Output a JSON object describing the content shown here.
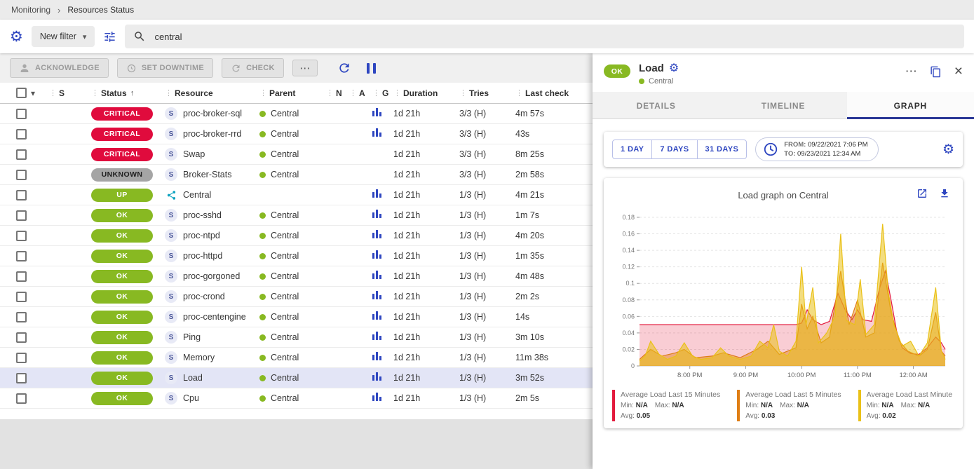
{
  "breadcrumb": {
    "items": [
      "Monitoring",
      "Resources Status"
    ]
  },
  "icons": {
    "gear": "⚙",
    "caret_down": "▾",
    "kebab": "⋮",
    "sort_asc": "↑",
    "more": "⋯",
    "close": "×",
    "chevron_right": "›"
  },
  "filter_bar": {
    "new_filter_label": "New filter",
    "search_value": "central"
  },
  "toolbar": {
    "acknowledge_label": "ACKNOWLEDGE",
    "set_downtime_label": "SET DOWNTIME",
    "check_label": "CHECK"
  },
  "table": {
    "columns": [
      {
        "key": "severity",
        "label": "S"
      },
      {
        "key": "status",
        "label": "Status",
        "sorted": true
      },
      {
        "key": "resource",
        "label": "Resource"
      },
      {
        "key": "parent",
        "label": "Parent"
      },
      {
        "key": "notes",
        "label": "N"
      },
      {
        "key": "action",
        "label": "A"
      },
      {
        "key": "graph",
        "label": "G"
      },
      {
        "key": "duration",
        "label": "Duration"
      },
      {
        "key": "tries",
        "label": "Tries"
      },
      {
        "key": "lastcheck",
        "label": "Last check"
      }
    ],
    "rows": [
      {
        "status": "CRITICAL",
        "severity": "critical",
        "type": "S",
        "resource": "proc-broker-sql",
        "parent": "Central",
        "graph": true,
        "duration": "1d 21h",
        "tries": "3/3 (H)",
        "last_check": "4m 57s"
      },
      {
        "status": "CRITICAL",
        "severity": "critical",
        "type": "S",
        "resource": "proc-broker-rrd",
        "parent": "Central",
        "graph": true,
        "duration": "1d 21h",
        "tries": "3/3 (H)",
        "last_check": "43s"
      },
      {
        "status": "CRITICAL",
        "severity": "critical",
        "type": "S",
        "resource": "Swap",
        "parent": "Central",
        "graph": false,
        "duration": "1d 21h",
        "tries": "3/3 (H)",
        "last_check": "8m 25s"
      },
      {
        "status": "UNKNOWN",
        "severity": "unknown",
        "type": "S",
        "resource": "Broker-Stats",
        "parent": "Central",
        "graph": false,
        "duration": "1d 21h",
        "tries": "3/3 (H)",
        "last_check": "2m 58s"
      },
      {
        "status": "UP",
        "severity": "up",
        "type": "H",
        "resource": "Central",
        "parent": "",
        "graph": true,
        "duration": "1d 21h",
        "tries": "1/3 (H)",
        "last_check": "4m 21s"
      },
      {
        "status": "OK",
        "severity": "ok",
        "type": "S",
        "resource": "proc-sshd",
        "parent": "Central",
        "graph": true,
        "duration": "1d 21h",
        "tries": "1/3 (H)",
        "last_check": "1m 7s"
      },
      {
        "status": "OK",
        "severity": "ok",
        "type": "S",
        "resource": "proc-ntpd",
        "parent": "Central",
        "graph": true,
        "duration": "1d 21h",
        "tries": "1/3 (H)",
        "last_check": "4m 20s"
      },
      {
        "status": "OK",
        "severity": "ok",
        "type": "S",
        "resource": "proc-httpd",
        "parent": "Central",
        "graph": true,
        "duration": "1d 21h",
        "tries": "1/3 (H)",
        "last_check": "1m 35s"
      },
      {
        "status": "OK",
        "severity": "ok",
        "type": "S",
        "resource": "proc-gorgoned",
        "parent": "Central",
        "graph": true,
        "duration": "1d 21h",
        "tries": "1/3 (H)",
        "last_check": "4m 48s"
      },
      {
        "status": "OK",
        "severity": "ok",
        "type": "S",
        "resource": "proc-crond",
        "parent": "Central",
        "graph": true,
        "duration": "1d 21h",
        "tries": "1/3 (H)",
        "last_check": "2m 2s"
      },
      {
        "status": "OK",
        "severity": "ok",
        "type": "S",
        "resource": "proc-centengine",
        "parent": "Central",
        "graph": true,
        "duration": "1d 21h",
        "tries": "1/3 (H)",
        "last_check": "14s"
      },
      {
        "status": "OK",
        "severity": "ok",
        "type": "S",
        "resource": "Ping",
        "parent": "Central",
        "graph": true,
        "duration": "1d 21h",
        "tries": "1/3 (H)",
        "last_check": "3m 10s"
      },
      {
        "status": "OK",
        "severity": "ok",
        "type": "S",
        "resource": "Memory",
        "parent": "Central",
        "graph": true,
        "duration": "1d 21h",
        "tries": "1/3 (H)",
        "last_check": "11m 38s"
      },
      {
        "status": "OK",
        "severity": "ok",
        "type": "S",
        "resource": "Load",
        "parent": "Central",
        "graph": true,
        "duration": "1d 21h",
        "tries": "1/3 (H)",
        "last_check": "3m 52s",
        "selected": true
      },
      {
        "status": "OK",
        "severity": "ok",
        "type": "S",
        "resource": "Cpu",
        "parent": "Central",
        "graph": true,
        "duration": "1d 21h",
        "tries": "1/3 (H)",
        "last_check": "2m 5s"
      }
    ]
  },
  "panel": {
    "status": "OK",
    "title": "Load",
    "subtitle": "Central",
    "tabs": [
      "DETAILS",
      "TIMELINE",
      "GRAPH"
    ],
    "active_tab": "GRAPH",
    "range_buttons": [
      "1 DAY",
      "7 DAYS",
      "31 DAYS"
    ],
    "from_label": "FROM:",
    "from_value": "09/22/2021 7:06 PM",
    "to_label": "TO:",
    "to_value": "09/23/2021 12:34 AM",
    "graph_title": "Load graph on Central"
  },
  "chart_data": {
    "type": "area",
    "title": "Load graph on Central",
    "xlabel": "",
    "ylabel": "",
    "xlim": [
      19.1,
      24.57
    ],
    "ylim": [
      0,
      0.18
    ],
    "yticks": [
      0,
      0.02,
      0.04,
      0.06,
      0.08,
      0.1,
      0.12,
      0.14,
      0.16,
      0.18
    ],
    "xticks": [
      {
        "t": 20,
        "label": "8:00 PM"
      },
      {
        "t": 21,
        "label": "9:00 PM"
      },
      {
        "t": 22,
        "label": "10:00 PM"
      },
      {
        "t": 23,
        "label": "11:00 PM"
      },
      {
        "t": 24,
        "label": "12:00 AM"
      }
    ],
    "grid": true,
    "legend_position": "bottom",
    "legend": {
      "min_label": "Min:",
      "max_label": "Max:",
      "avg_label": "Avg:"
    },
    "series": [
      {
        "name": "Average Load Last 15 Minutes",
        "color": "#E31B3D",
        "fill": "rgba(227,27,61,0.22)",
        "min": "N/A",
        "max": "N/A",
        "avg": "0.05",
        "points": [
          [
            19.1,
            0.05
          ],
          [
            19.5,
            0.05
          ],
          [
            20,
            0.05
          ],
          [
            20.5,
            0.05
          ],
          [
            21,
            0.05
          ],
          [
            21.5,
            0.05
          ],
          [
            21.9,
            0.05
          ],
          [
            22,
            0.052
          ],
          [
            22.1,
            0.068
          ],
          [
            22.2,
            0.056
          ],
          [
            22.35,
            0.05
          ],
          [
            22.5,
            0.054
          ],
          [
            22.65,
            0.088
          ],
          [
            22.78,
            0.068
          ],
          [
            22.9,
            0.056
          ],
          [
            23,
            0.068
          ],
          [
            23.1,
            0.056
          ],
          [
            23.25,
            0.054
          ],
          [
            23.4,
            0.095
          ],
          [
            23.5,
            0.115
          ],
          [
            23.6,
            0.08
          ],
          [
            23.7,
            0.042
          ],
          [
            23.8,
            0.022
          ],
          [
            23.95,
            0.015
          ],
          [
            24.1,
            0.014
          ],
          [
            24.25,
            0.022
          ],
          [
            24.4,
            0.035
          ],
          [
            24.5,
            0.028
          ],
          [
            24.57,
            0.02
          ]
        ]
      },
      {
        "name": "Average Load Last 5 Minutes",
        "color": "#DF7E14",
        "fill": "rgba(223,126,20,0.45)",
        "min": "N/A",
        "max": "N/A",
        "avg": "0.03",
        "points": [
          [
            19.1,
            0.008
          ],
          [
            19.3,
            0.02
          ],
          [
            19.5,
            0.012
          ],
          [
            19.75,
            0.016
          ],
          [
            19.9,
            0.02
          ],
          [
            20.1,
            0.01
          ],
          [
            20.4,
            0.012
          ],
          [
            20.6,
            0.016
          ],
          [
            20.9,
            0.01
          ],
          [
            21.2,
            0.02
          ],
          [
            21.4,
            0.03
          ],
          [
            21.6,
            0.014
          ],
          [
            21.9,
            0.022
          ],
          [
            22,
            0.075
          ],
          [
            22.1,
            0.045
          ],
          [
            22.2,
            0.06
          ],
          [
            22.35,
            0.028
          ],
          [
            22.5,
            0.035
          ],
          [
            22.7,
            0.115
          ],
          [
            22.85,
            0.05
          ],
          [
            23,
            0.08
          ],
          [
            23.15,
            0.035
          ],
          [
            23.3,
            0.04
          ],
          [
            23.45,
            0.125
          ],
          [
            23.6,
            0.065
          ],
          [
            23.75,
            0.03
          ],
          [
            23.9,
            0.018
          ],
          [
            24.1,
            0.012
          ],
          [
            24.25,
            0.02
          ],
          [
            24.4,
            0.065
          ],
          [
            24.5,
            0.018
          ],
          [
            24.57,
            0.012
          ]
        ]
      },
      {
        "name": "Average Load Last Minute",
        "color": "#EAC118",
        "fill": "rgba(234,193,24,0.55)",
        "min": "N/A",
        "max": "N/A",
        "avg": "0.02",
        "points": [
          [
            19.1,
            0.006
          ],
          [
            19.2,
            0.012
          ],
          [
            19.3,
            0.03
          ],
          [
            19.45,
            0.014
          ],
          [
            19.6,
            0.008
          ],
          [
            19.75,
            0.012
          ],
          [
            19.9,
            0.028
          ],
          [
            20.05,
            0.012
          ],
          [
            20.2,
            0.008
          ],
          [
            20.4,
            0.01
          ],
          [
            20.55,
            0.022
          ],
          [
            20.7,
            0.012
          ],
          [
            20.9,
            0.008
          ],
          [
            21.1,
            0.012
          ],
          [
            21.25,
            0.03
          ],
          [
            21.4,
            0.022
          ],
          [
            21.5,
            0.05
          ],
          [
            21.6,
            0.018
          ],
          [
            21.75,
            0.012
          ],
          [
            21.9,
            0.03
          ],
          [
            22,
            0.12
          ],
          [
            22.08,
            0.05
          ],
          [
            22.2,
            0.095
          ],
          [
            22.3,
            0.028
          ],
          [
            22.45,
            0.04
          ],
          [
            22.6,
            0.06
          ],
          [
            22.7,
            0.16
          ],
          [
            22.8,
            0.055
          ],
          [
            22.95,
            0.05
          ],
          [
            23.05,
            0.105
          ],
          [
            23.15,
            0.038
          ],
          [
            23.3,
            0.05
          ],
          [
            23.45,
            0.172
          ],
          [
            23.55,
            0.09
          ],
          [
            23.65,
            0.05
          ],
          [
            23.8,
            0.024
          ],
          [
            23.95,
            0.03
          ],
          [
            24.1,
            0.012
          ],
          [
            24.25,
            0.028
          ],
          [
            24.4,
            0.095
          ],
          [
            24.5,
            0.018
          ],
          [
            24.57,
            0.008
          ]
        ]
      }
    ]
  },
  "colors": {
    "accent": "#2E46C0",
    "critical": "#E00B3D",
    "success": "#88B922",
    "unknown_badge": "#A5A5A5",
    "selected_row": "#E3E5F6",
    "host_icon": "#0FA3C0"
  }
}
